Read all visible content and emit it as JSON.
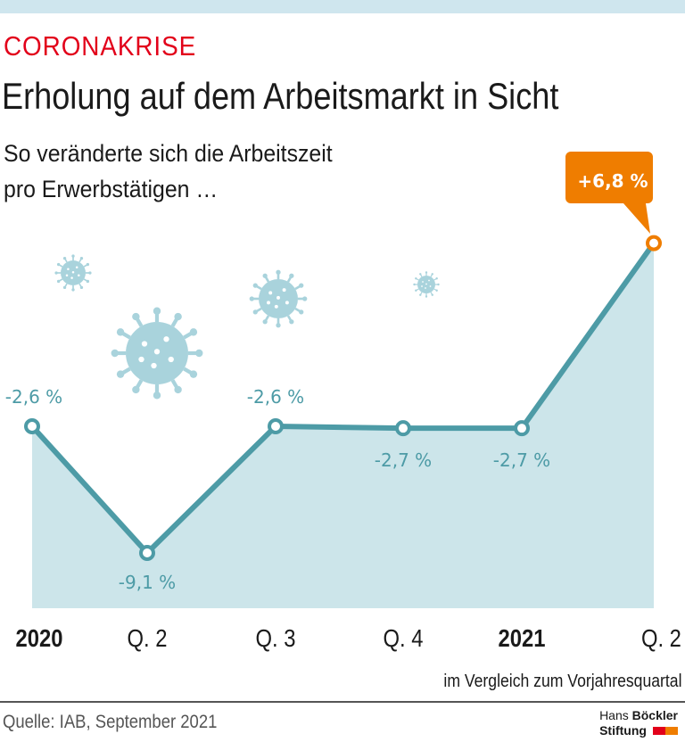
{
  "header": {
    "kicker": "CORONAKRISE",
    "title": "Erholung auf dem Arbeitsmarkt in Sicht",
    "subtitle_line1": "So veränderte sich die Arbeitszeit",
    "subtitle_line2": "pro Erwerbstätigen …"
  },
  "chart_data": {
    "type": "area",
    "categories": [
      "2020",
      "Q. 2",
      "Q. 3",
      "Q. 4",
      "2021",
      "Q. 2"
    ],
    "values": [
      -2.6,
      -9.1,
      -2.6,
      -2.7,
      -2.7,
      6.8
    ],
    "data_labels": [
      "-2,6 %",
      "-9,1 %",
      "-2,6 %",
      "-2,7 %",
      "-2,7 %",
      "+6,8 %"
    ],
    "unit": "%",
    "note": "im Vergleich zum Vorjahresquartal",
    "grid": false,
    "colors": {
      "line": "#4d9ba6",
      "area": "#cce5ea",
      "highlight": "#ef7d00",
      "virus": "#a9d3dc"
    }
  },
  "footer": {
    "source": "Quelle: IAB, September 2021",
    "logo_line1_light": "Hans",
    "logo_line1_bold": "Böckler",
    "logo_line2": "Stiftung"
  }
}
